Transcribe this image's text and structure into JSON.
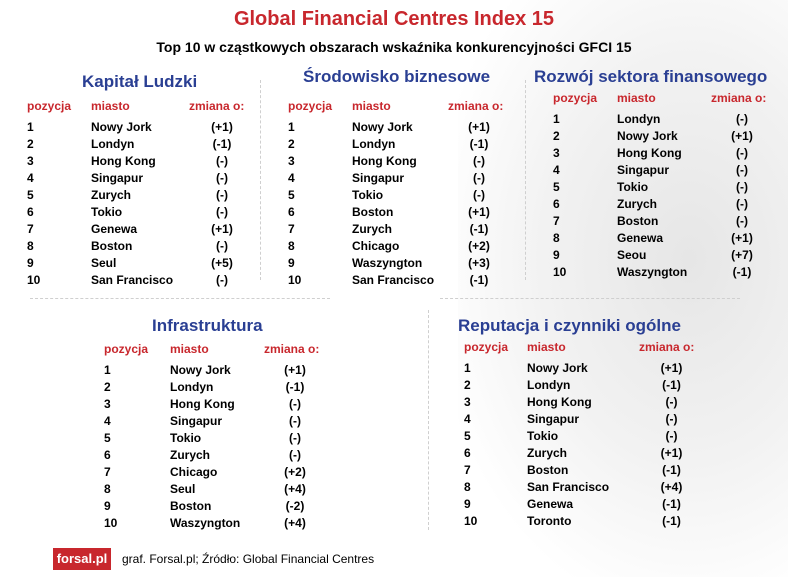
{
  "title": "Global Financial Centres Index 15",
  "subtitle": "Top 10 w cząstkowych obszarach wskaźnika konkurencyjności  GFCI 15",
  "columns": {
    "rank": "pozycja",
    "city": "miasto",
    "change": "zmiana o:"
  },
  "sections": [
    {
      "title": "Kapitał Ludzki",
      "rows": [
        [
          "1",
          "Nowy Jork",
          "(+1)"
        ],
        [
          "2",
          "Londyn",
          "(-1)"
        ],
        [
          "3",
          "Hong Kong",
          "(-)"
        ],
        [
          "4",
          "Singapur",
          "(-)"
        ],
        [
          "5",
          "Zurych",
          "(-)"
        ],
        [
          "6",
          "Tokio",
          "(-)"
        ],
        [
          "7",
          "Genewa",
          "(+1)"
        ],
        [
          "8",
          "Boston",
          "(-)"
        ],
        [
          "9",
          "Seul",
          "(+5)"
        ],
        [
          "10",
          "San Francisco",
          "(-)"
        ]
      ]
    },
    {
      "title": "Środowisko biznesowe",
      "rows": [
        [
          "1",
          "Nowy Jork",
          "(+1)"
        ],
        [
          "2",
          "Londyn",
          "(-1)"
        ],
        [
          "3",
          "Hong Kong",
          "(-)"
        ],
        [
          "4",
          "Singapur",
          "(-)"
        ],
        [
          "5",
          "Tokio",
          "(-)"
        ],
        [
          "6",
          "Boston",
          "(+1)"
        ],
        [
          "7",
          "Zurych",
          "(-1)"
        ],
        [
          "8",
          "Chicago",
          "(+2)"
        ],
        [
          "9",
          "Waszyngton",
          "(+3)"
        ],
        [
          "10",
          "San Francisco",
          "(-1)"
        ]
      ]
    },
    {
      "title": "Rozwój sektora finansowego",
      "rows": [
        [
          "1",
          "Londyn",
          "(-)"
        ],
        [
          "2",
          "Nowy Jork",
          "(+1)"
        ],
        [
          "3",
          "Hong Kong",
          "(-)"
        ],
        [
          "4",
          "Singapur",
          "(-)"
        ],
        [
          "5",
          "Tokio",
          "(-)"
        ],
        [
          "6",
          "Zurych",
          "(-)"
        ],
        [
          "7",
          "Boston",
          "(-)"
        ],
        [
          "8",
          "Genewa",
          "(+1)"
        ],
        [
          "9",
          "Seou",
          "(+7)"
        ],
        [
          "10",
          "Waszyngton",
          "(-1)"
        ]
      ]
    },
    {
      "title": "Infrastruktura",
      "rows": [
        [
          "1",
          "Nowy Jork",
          "(+1)"
        ],
        [
          "2",
          "Londyn",
          "(-1)"
        ],
        [
          "3",
          "Hong Kong",
          "(-)"
        ],
        [
          "4",
          "Singapur",
          "(-)"
        ],
        [
          "5",
          "Tokio",
          "(-)"
        ],
        [
          "6",
          "Zurych",
          "(-)"
        ],
        [
          "7",
          "Chicago",
          "(+2)"
        ],
        [
          "8",
          "Seul",
          "(+4)"
        ],
        [
          "9",
          "Boston",
          "(-2)"
        ],
        [
          "10",
          "Waszyngton",
          "(+4)"
        ]
      ]
    },
    {
      "title": "Reputacja i czynniki ogólne",
      "rows": [
        [
          "1",
          "Nowy Jork",
          "(+1)"
        ],
        [
          "2",
          "Londyn",
          "(-1)"
        ],
        [
          "3",
          "Hong Kong",
          "(-)"
        ],
        [
          "4",
          "Singapur",
          "(-)"
        ],
        [
          "5",
          "Tokio",
          "(-)"
        ],
        [
          "6",
          "Zurych",
          "(+1)"
        ],
        [
          "7",
          "Boston",
          "(-1)"
        ],
        [
          "8",
          "San Francisco",
          "(+4)"
        ],
        [
          "9",
          "Genewa",
          "(-1)"
        ],
        [
          "10",
          "Toronto",
          "(-1)"
        ]
      ]
    }
  ],
  "logo": "forsal.pl",
  "source": "graf. Forsal.pl; Źródło: Global Financial Centres",
  "colors": {
    "title": "#c8272d",
    "section_title": "#2a3f93",
    "header": "#c8272d"
  }
}
